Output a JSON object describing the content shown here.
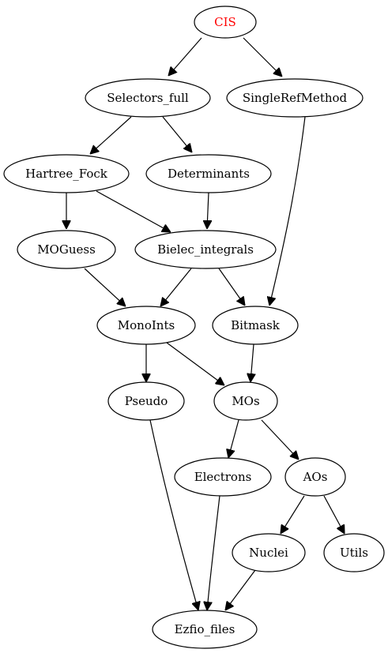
{
  "colors": {
    "root_label": "#ff0000",
    "default_label": "#000000",
    "stroke": "#000000",
    "background": "#ffffff"
  },
  "nodes": {
    "cis": {
      "label": "CIS",
      "color": "#ff0000"
    },
    "selectors_full": {
      "label": "Selectors_full"
    },
    "singlerefmethod": {
      "label": "SingleRefMethod"
    },
    "hartree_fock": {
      "label": "Hartree_Fock"
    },
    "determinants": {
      "label": "Determinants"
    },
    "moguess": {
      "label": "MOGuess"
    },
    "bielec_integrals": {
      "label": "Bielec_integrals"
    },
    "monoints": {
      "label": "MonoInts"
    },
    "bitmask": {
      "label": "Bitmask"
    },
    "pseudo": {
      "label": "Pseudo"
    },
    "mos": {
      "label": "MOs"
    },
    "electrons": {
      "label": "Electrons"
    },
    "aos": {
      "label": "AOs"
    },
    "nuclei": {
      "label": "Nuclei"
    },
    "utils": {
      "label": "Utils"
    },
    "ezfio_files": {
      "label": "Ezfio_files"
    }
  },
  "edges": [
    {
      "from": "cis",
      "to": "selectors_full"
    },
    {
      "from": "cis",
      "to": "singlerefmethod"
    },
    {
      "from": "selectors_full",
      "to": "hartree_fock"
    },
    {
      "from": "selectors_full",
      "to": "determinants"
    },
    {
      "from": "hartree_fock",
      "to": "moguess"
    },
    {
      "from": "hartree_fock",
      "to": "bielec_integrals"
    },
    {
      "from": "determinants",
      "to": "bielec_integrals"
    },
    {
      "from": "singlerefmethod",
      "to": "bitmask"
    },
    {
      "from": "moguess",
      "to": "monoints"
    },
    {
      "from": "bielec_integrals",
      "to": "monoints"
    },
    {
      "from": "bielec_integrals",
      "to": "bitmask"
    },
    {
      "from": "monoints",
      "to": "pseudo"
    },
    {
      "from": "monoints",
      "to": "mos"
    },
    {
      "from": "bitmask",
      "to": "mos"
    },
    {
      "from": "mos",
      "to": "electrons"
    },
    {
      "from": "mos",
      "to": "aos"
    },
    {
      "from": "pseudo",
      "to": "ezfio_files"
    },
    {
      "from": "electrons",
      "to": "ezfio_files"
    },
    {
      "from": "aos",
      "to": "nuclei"
    },
    {
      "from": "aos",
      "to": "utils"
    },
    {
      "from": "nuclei",
      "to": "ezfio_files"
    }
  ]
}
